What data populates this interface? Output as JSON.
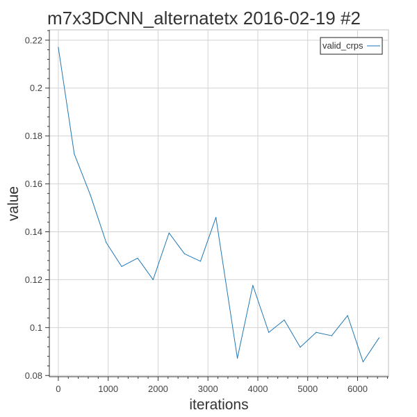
{
  "chart_data": {
    "type": "line",
    "title": "m7x3DCNN_alternatetx 2016-02-19 #2",
    "xlabel": "iterations",
    "ylabel": "value",
    "xlim": [
      -180,
      6620
    ],
    "ylim": [
      0.0795,
      0.2243
    ],
    "xticks": [
      0,
      1000,
      2000,
      3000,
      4000,
      5000,
      6000
    ],
    "yticks": [
      0.08,
      0.1,
      0.12,
      0.14,
      0.16,
      0.18,
      0.2,
      0.22
    ],
    "xtick_labels": [
      "0",
      "1000",
      "2000",
      "3000",
      "4000",
      "5000",
      "6000"
    ],
    "ytick_labels": [
      "0.08",
      "0.1",
      "0.12",
      "0.14",
      "0.16",
      "0.18",
      "0.2",
      "0.22"
    ],
    "grid": true,
    "legend_position": "top-right",
    "series": [
      {
        "name": "valid_crps",
        "color": "#1f77b4",
        "x": [
          0,
          320,
          640,
          960,
          1270,
          1590,
          1900,
          2220,
          2530,
          2850,
          3160,
          3590,
          3900,
          4220,
          4530,
          4850,
          5170,
          5480,
          5800,
          6110,
          6430
        ],
        "y": [
          0.217,
          0.1725,
          0.1555,
          0.1355,
          0.1255,
          0.129,
          0.12,
          0.1395,
          0.1308,
          0.1277,
          0.146,
          0.0872,
          0.1176,
          0.098,
          0.1032,
          0.0918,
          0.098,
          0.0966,
          0.105,
          0.0857,
          0.0957
        ]
      }
    ]
  }
}
